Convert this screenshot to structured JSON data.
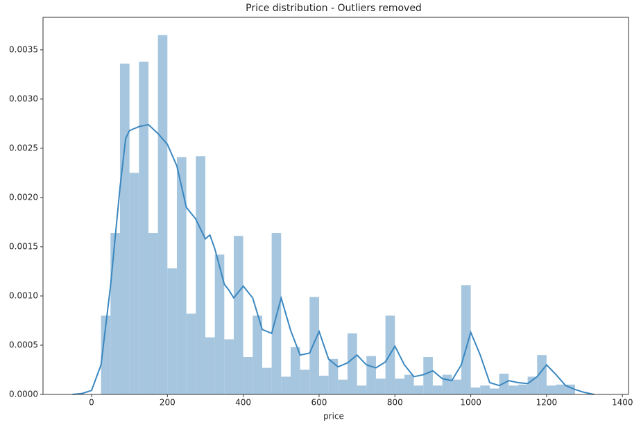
{
  "chart_data": {
    "type": "histogram",
    "title": "Price distribution - Outliers removed",
    "xlabel": "price",
    "bins": [
      25,
      50,
      75,
      100,
      125,
      150,
      175,
      200,
      225,
      250,
      275,
      300,
      325,
      350,
      375,
      400,
      425,
      450,
      475,
      500,
      525,
      550,
      575,
      600,
      625,
      650,
      675,
      700,
      725,
      750,
      775,
      800,
      825,
      850,
      875,
      900,
      925,
      950,
      975,
      1000,
      1025,
      1050,
      1075,
      1100,
      1125,
      1150,
      1175,
      1200,
      1225,
      1250,
      1275
    ],
    "values": [
      0.0008,
      0.00164,
      0.00336,
      0.00225,
      0.00338,
      0.00164,
      0.00365,
      0.00128,
      0.00241,
      0.00082,
      0.00242,
      0.00058,
      0.00142,
      0.00056,
      0.00161,
      0.00038,
      0.0008,
      0.00027,
      0.00164,
      0.00018,
      0.00048,
      0.00025,
      0.00099,
      0.00019,
      0.00036,
      0.00015,
      0.00062,
      9e-05,
      0.00039,
      0.00016,
      0.0008,
      0.00016,
      0.0002,
      9e-05,
      0.00038,
      9e-05,
      0.0002,
      0.00015,
      0.00111,
      7e-05,
      9e-05,
      6e-05,
      0.00021,
      9e-05,
      0.0001,
      0.00018,
      0.0004,
      9e-05,
      0.0001,
      0.0001
    ],
    "color": "#a5c6de",
    "kde": {
      "color": "#3a87c0",
      "x": [
        -50,
        -25,
        0,
        25,
        50,
        75,
        90,
        100,
        125,
        150,
        175,
        200,
        225,
        250,
        275,
        300,
        312,
        325,
        350,
        362,
        375,
        400,
        425,
        450,
        475,
        500,
        525,
        550,
        575,
        600,
        625,
        650,
        675,
        700,
        725,
        750,
        775,
        800,
        825,
        850,
        875,
        900,
        925,
        950,
        975,
        1000,
        1025,
        1050,
        1075,
        1100,
        1125,
        1150,
        1175,
        1200,
        1225,
        1250,
        1275,
        1300,
        1325
      ],
      "values": [
        0,
        1e-05,
        4e-05,
        0.0003,
        0.0011,
        0.0021,
        0.0026,
        0.00268,
        0.00272,
        0.00274,
        0.00265,
        0.00254,
        0.00232,
        0.0019,
        0.00178,
        0.00158,
        0.00162,
        0.00148,
        0.00112,
        0.00106,
        0.00098,
        0.0011,
        0.00098,
        0.00066,
        0.00062,
        0.00098,
        0.00065,
        0.0004,
        0.00042,
        0.00064,
        0.00036,
        0.00028,
        0.00032,
        0.0004,
        0.0003,
        0.00027,
        0.00033,
        0.00049,
        0.0003,
        0.00018,
        0.0002,
        0.00024,
        0.00016,
        0.00014,
        0.0003,
        0.00063,
        0.0004,
        0.00012,
        9e-05,
        0.00014,
        0.00012,
        0.00011,
        0.00018,
        0.0003,
        0.0002,
        9e-05,
        5e-05,
        2e-05,
        0
      ]
    },
    "xlim": [
      -128,
      1416
    ],
    "ylim": [
      0,
      0.00383
    ],
    "xticks": [
      0,
      200,
      400,
      600,
      800,
      1000,
      1200,
      1400
    ],
    "yticks": [
      {
        "value": 0,
        "label": "0.0000"
      },
      {
        "value": 0.0005,
        "label": "0.0005"
      },
      {
        "value": 0.001,
        "label": "0.0010"
      },
      {
        "value": 0.0015,
        "label": "0.0015"
      },
      {
        "value": 0.002,
        "label": "0.0020"
      },
      {
        "value": 0.0025,
        "label": "0.0025"
      },
      {
        "value": 0.003,
        "label": "0.0030"
      },
      {
        "value": 0.0035,
        "label": "0.0035"
      }
    ]
  }
}
